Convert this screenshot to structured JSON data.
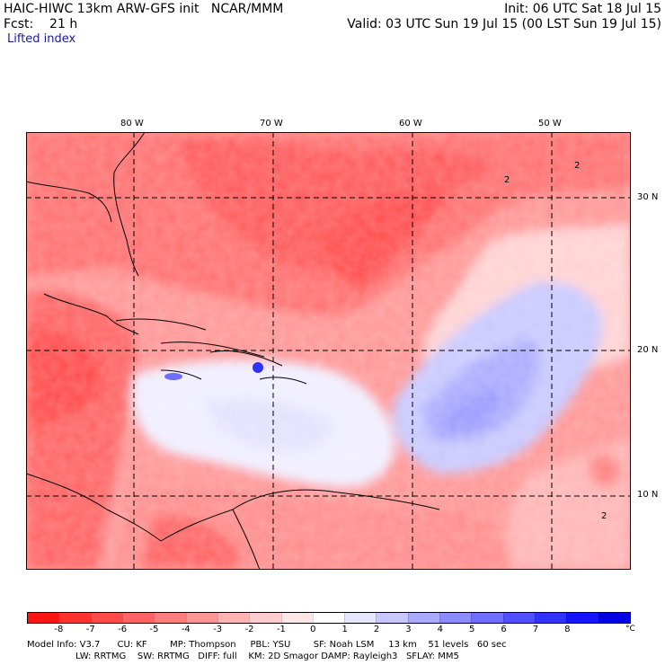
{
  "header": {
    "model_line": "HAIC-HIWC 13km ARW-GFS init   NCAR/MMM",
    "init_line": "Init: 06 UTC Sat 18 Jul 15",
    "fcst_line": "Fcst:    21 h",
    "valid_line": "Valid: 03 UTC Sun 19 Jul 15 (00 LST Sun 19 Jul 15)",
    "field_name": "Lifted index"
  },
  "map": {
    "lon_labels": [
      "80 W",
      "70 W",
      "60 W",
      "50 W"
    ],
    "lat_labels": [
      "30 N",
      "20 N",
      "10 N"
    ],
    "contour_label": "2",
    "grid_color": "#000000"
  },
  "colorbar": {
    "tick_labels": [
      "-8",
      "-7",
      "-6",
      "-5",
      "-4",
      "-3",
      "-2",
      "-1",
      "0",
      "1",
      "2",
      "3",
      "4",
      "5",
      "6",
      "7",
      "8"
    ],
    "unit": "°C",
    "colors": [
      "#ff1414",
      "#ff3232",
      "#ff4b4b",
      "#ff6464",
      "#ff7d7d",
      "#ff9696",
      "#ffb4b4",
      "#ffcdcd",
      "#ffe6e6",
      "#ffffff",
      "#e6e6ff",
      "#c8c8ff",
      "#aaaaff",
      "#8c8cff",
      "#6e6eff",
      "#5050ff",
      "#3232ff",
      "#1414ff",
      "#0000e6"
    ]
  },
  "model_info": {
    "line1": "Model Info: V3.7      CU: KF        MP: Thompson     PBL: YSU        SF: Noah LSM     13 km    51 levels   60 sec",
    "line2": "                 LW: RRTMG    SW: RRTMG   DIFF: full    KM: 2D Smagor DAMP: Rayleigh3   SFLAY: MM5"
  }
}
